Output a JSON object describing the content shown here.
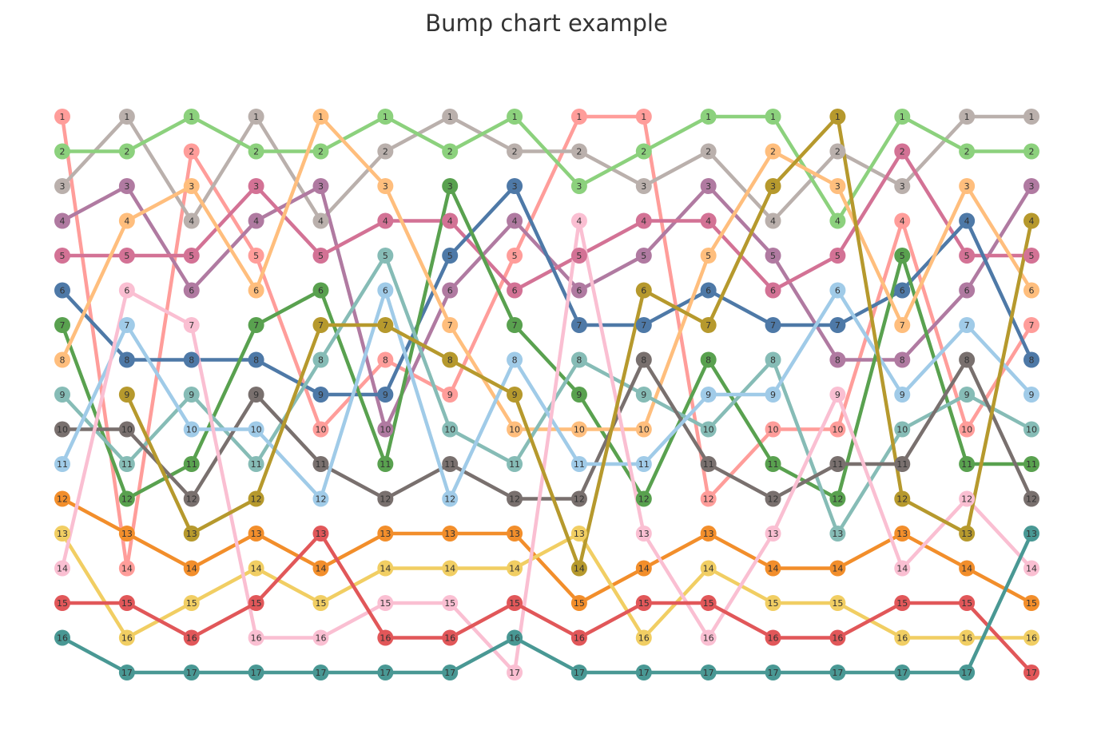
{
  "chart_data": {
    "type": "bump",
    "title": "Bump chart example",
    "categories": [
      null,
      null,
      null,
      null,
      null,
      null,
      null,
      null,
      null,
      null,
      null,
      null,
      null,
      null,
      null,
      null
    ],
    "ylim": [
      1,
      17
    ],
    "invert_y": true,
    "series": [
      {
        "color": "#ff9d9a",
        "values": [
          1,
          14,
          2,
          5,
          10,
          8,
          9,
          5,
          1,
          1,
          12,
          10,
          10,
          4,
          10,
          7
        ]
      },
      {
        "color": "#bab0ac",
        "values": [
          3,
          1,
          4,
          1,
          4,
          2,
          1,
          2,
          2,
          3,
          2,
          4,
          2,
          3,
          1,
          1
        ]
      },
      {
        "color": "#8cd17d",
        "values": [
          2,
          2,
          1,
          2,
          2,
          1,
          2,
          1,
          3,
          2,
          1,
          1,
          4,
          1,
          2,
          2
        ]
      },
      {
        "color": "#b07aa1",
        "values": [
          4,
          3,
          6,
          4,
          3,
          10,
          6,
          4,
          6,
          5,
          3,
          5,
          8,
          8,
          6,
          3
        ]
      },
      {
        "color": "#d37295",
        "values": [
          5,
          5,
          5,
          3,
          5,
          4,
          4,
          6,
          5,
          4,
          4,
          6,
          5,
          2,
          5,
          5
        ]
      },
      {
        "color": "#4e79a7",
        "values": [
          6,
          8,
          8,
          8,
          9,
          9,
          5,
          3,
          7,
          7,
          6,
          7,
          7,
          6,
          4,
          8
        ]
      },
      {
        "color": "#59a14f",
        "values": [
          7,
          12,
          11,
          7,
          6,
          11,
          3,
          7,
          9,
          12,
          8,
          11,
          12,
          5,
          11,
          11
        ]
      },
      {
        "color": "#ffbe7d",
        "values": [
          8,
          4,
          3,
          6,
          1,
          3,
          7,
          10,
          10,
          10,
          5,
          2,
          3,
          7,
          3,
          6
        ]
      },
      {
        "color": "#86bcb6",
        "values": [
          9,
          11,
          9,
          11,
          8,
          5,
          10,
          11,
          8,
          9,
          10,
          8,
          13,
          10,
          9,
          10
        ]
      },
      {
        "color": "#79706e",
        "values": [
          10,
          10,
          12,
          9,
          11,
          12,
          11,
          12,
          12,
          8,
          11,
          12,
          11,
          11,
          8,
          12
        ]
      },
      {
        "color": "#a0cbe8",
        "values": [
          11,
          7,
          10,
          10,
          12,
          6,
          12,
          8,
          11,
          11,
          9,
          9,
          6,
          9,
          7,
          9
        ]
      },
      {
        "color": "#f28e2b",
        "values": [
          12,
          13,
          14,
          13,
          14,
          13,
          13,
          13,
          15,
          14,
          13,
          14,
          14,
          13,
          14,
          15
        ]
      },
      {
        "color": "#f1ce63",
        "values": [
          13,
          16,
          15,
          14,
          15,
          14,
          14,
          14,
          13,
          16,
          14,
          15,
          15,
          16,
          16,
          16
        ]
      },
      {
        "color": "#fabfd2",
        "values": [
          14,
          6,
          7,
          16,
          16,
          15,
          15,
          17,
          4,
          13,
          16,
          13,
          9,
          14,
          12,
          14
        ]
      },
      {
        "color": "#e15759",
        "values": [
          15,
          15,
          16,
          15,
          13,
          16,
          16,
          15,
          16,
          15,
          15,
          16,
          16,
          15,
          15,
          17
        ]
      },
      {
        "color": "#499894",
        "values": [
          16,
          17,
          17,
          17,
          17,
          17,
          17,
          16,
          17,
          17,
          17,
          17,
          17,
          17,
          17,
          13
        ]
      },
      {
        "color": "#b6992d",
        "values": [
          null,
          9,
          13,
          12,
          7,
          7,
          8,
          9,
          14,
          6,
          7,
          3,
          1,
          12,
          13,
          4
        ]
      }
    ]
  }
}
